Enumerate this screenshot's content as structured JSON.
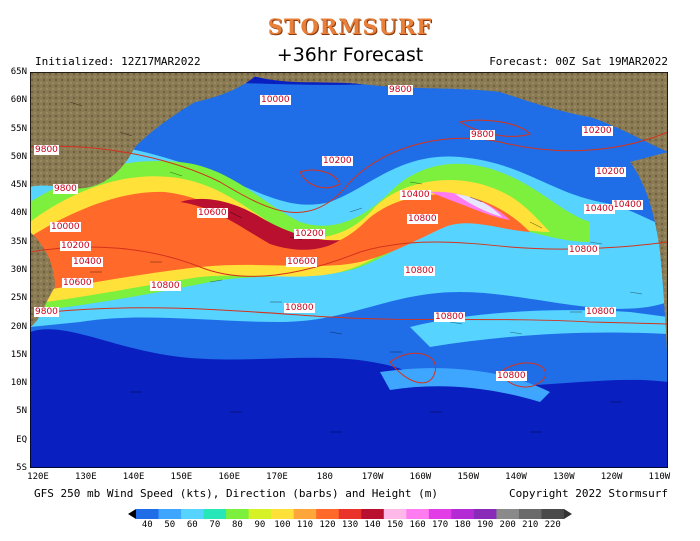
{
  "header": {
    "logo": "STORMSURF",
    "title": "+36hr Forecast",
    "initialized": "Initialized: 12Z17MAR2022",
    "forecast_valid": "Forecast: 00Z Sat 19MAR2022"
  },
  "footer": {
    "description": "GFS 250 mb Wind Speed (kts), Direction (barbs) and Height (m)",
    "copyright": "Copyright 2022 Stormsurf"
  },
  "map": {
    "lat_labels": [
      "65N",
      "60N",
      "55N",
      "50N",
      "45N",
      "40N",
      "35N",
      "30N",
      "25N",
      "20N",
      "15N",
      "10N",
      "5N",
      "EQ",
      "5S"
    ],
    "lon_labels": [
      "120E",
      "130E",
      "140E",
      "150E",
      "160E",
      "170E",
      "180",
      "170W",
      "160W",
      "150W",
      "140W",
      "130W",
      "120W",
      "110W"
    ],
    "height_labels": [
      "10000",
      "9800",
      "9800",
      "10200",
      "10200",
      "9800",
      "9800",
      "10000",
      "10200",
      "10400",
      "10200",
      "10400",
      "10600",
      "10600",
      "10800",
      "10800",
      "10800",
      "10800",
      "10800",
      "10800",
      "10200",
      "10400",
      "10400",
      "10800",
      "10600",
      "9800",
      "10800"
    ],
    "colors": {
      "ocean": "#0a1fbf",
      "land": "#8a7a52",
      "height_contour": "#d4321c"
    }
  },
  "colorbar": {
    "labels": [
      "40",
      "50",
      "60",
      "70",
      "80",
      "90",
      "100",
      "110",
      "120",
      "130",
      "140",
      "150",
      "160",
      "170",
      "180",
      "190",
      "200",
      "210",
      "220"
    ],
    "colors": [
      "#1f6ee8",
      "#3fa6ff",
      "#56d4ff",
      "#27e6b8",
      "#7cf03c",
      "#d6f227",
      "#ffe13a",
      "#ffa63a",
      "#ff6a2a",
      "#e8322a",
      "#b8102e",
      "#ffb8e8",
      "#ff7cf0",
      "#e23ce6",
      "#b42ad4",
      "#8a2ab8",
      "#8a8a8a",
      "#6a6a6a",
      "#4a4a4a"
    ]
  }
}
